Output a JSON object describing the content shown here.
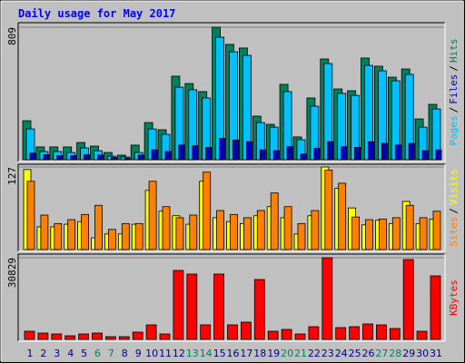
{
  "chart_data": [
    {
      "type": "bar",
      "title": "Daily usage for May 2017",
      "ylim": [
        0,
        809
      ],
      "yticks": [
        809
      ],
      "legend_separator": "/",
      "series": [
        {
          "name": "Hits",
          "color": "#00805c",
          "values": [
            238,
            78,
            78,
            78,
            105,
            83,
            44,
            28,
            89,
            227,
            183,
            510,
            465,
            416,
            809,
            704,
            682,
            266,
            216,
            460,
            139,
            377,
            615,
            432,
            421,
            621,
            571,
            504,
            554,
            249,
            338
          ]
        },
        {
          "name": "Files",
          "color": "#0000c0",
          "values": [
            40,
            30,
            25,
            25,
            30,
            28,
            15,
            10,
            28,
            60,
            50,
            90,
            85,
            75,
            130,
            120,
            110,
            60,
            55,
            80,
            35,
            70,
            110,
            80,
            75,
            110,
            100,
            90,
            100,
            55,
            60
          ]
        },
        {
          "name": "Pages",
          "color": "#00c0ff",
          "values": [
            188,
            50,
            50,
            44,
            72,
            55,
            22,
            17,
            44,
            188,
            155,
            443,
            427,
            377,
            748,
            659,
            637,
            227,
            199,
            416,
            122,
            327,
            587,
            405,
            393,
            576,
            543,
            482,
            521,
            199,
            310
          ]
        }
      ]
    },
    {
      "type": "bar",
      "ylim": [
        0,
        127
      ],
      "yticks": [
        127
      ],
      "legend_separator": "/",
      "series": [
        {
          "name": "Visits",
          "color": "#ffff00",
          "values": [
            123,
            35,
            35,
            39,
            43,
            18,
            24,
            24,
            39,
            91,
            59,
            52,
            39,
            105,
            49,
            43,
            40,
            52,
            66,
            49,
            24,
            52,
            127,
            94,
            64,
            38,
            45,
            40,
            74,
            40,
            47
          ]
        },
        {
          "name": "Sites",
          "color": "#ff8000",
          "values": [
            105,
            53,
            40,
            46,
            54,
            68,
            31,
            40,
            40,
            105,
            66,
            49,
            53,
            119,
            60,
            54,
            49,
            60,
            87,
            66,
            40,
            60,
            122,
            102,
            50,
            46,
            47,
            49,
            68,
            49,
            59
          ]
        }
      ]
    },
    {
      "type": "bar",
      "ylim": [
        0,
        30829
      ],
      "yticks": [
        30829
      ],
      "categories": [
        "1",
        "2",
        "3",
        "4",
        "5",
        "6",
        "7",
        "8",
        "9",
        "10",
        "11",
        "12",
        "13",
        "14",
        "15",
        "16",
        "17",
        "18",
        "19",
        "20",
        "21",
        "22",
        "23",
        "24",
        "25",
        "26",
        "27",
        "28",
        "29",
        "30",
        "31"
      ],
      "category_colors": [
        "#000080",
        "#000080",
        "#000080",
        "#000080",
        "#000080",
        "#00805c",
        "#00805c",
        "#000080",
        "#000080",
        "#000080",
        "#000080",
        "#000080",
        "#00805c",
        "#00805c",
        "#000080",
        "#000080",
        "#000080",
        "#000080",
        "#000080",
        "#00805c",
        "#00805c",
        "#000080",
        "#000080",
        "#000080",
        "#000080",
        "#000080",
        "#00805c",
        "#00805c",
        "#000080",
        "#000080",
        "#000080"
      ],
      "series": [
        {
          "name": "KBytes",
          "color": "#ff0000",
          "values": [
            3083,
            2398,
            2055,
            1370,
            2055,
            2398,
            1028,
            1028,
            2741,
            5481,
            2055,
            26033,
            24663,
            5481,
            24663,
            5481,
            6509,
            22607,
            3083,
            3768,
            2055,
            4796,
            30829,
            4453,
            4796,
            5824,
            5481,
            4111,
            30144,
            3083,
            23978
          ]
        }
      ]
    }
  ]
}
